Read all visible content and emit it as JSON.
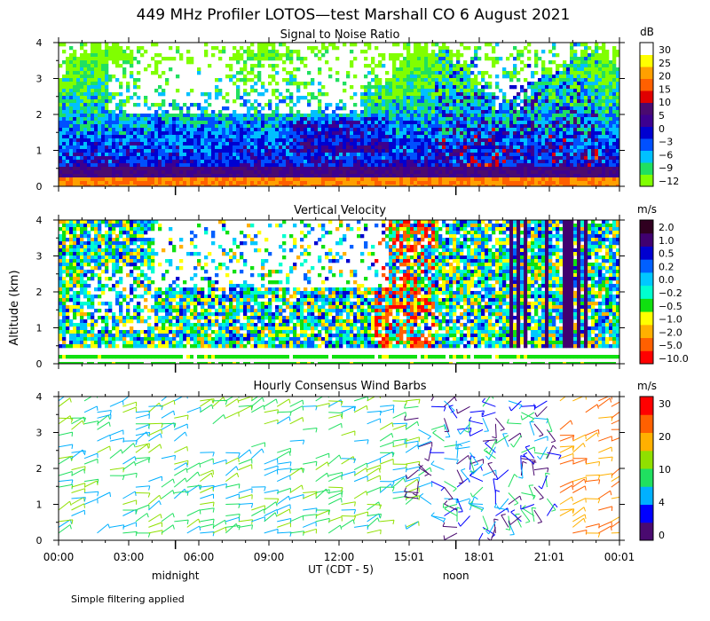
{
  "title": "449 MHz Profiler LOTOS—test Marshall CO  6 August 2021",
  "y_axis_label": "Altitude (km)",
  "x_axis_label": "UT  (CDT - 5)",
  "x_ticks": [
    "00:00",
    "03:00",
    "06:00",
    "09:00",
    "12:00",
    "15:01",
    "18:01",
    "21:01",
    "00:01"
  ],
  "local_markers": [
    {
      "label": "midnight",
      "hour": 5
    },
    {
      "label": "noon",
      "hour": 17
    }
  ],
  "footnote": "Simple filtering applied",
  "colors": {
    "snr": [
      "#80ff00",
      "#20e060",
      "#00c0ff",
      "#0050ff",
      "#0000d0",
      "#3c0090",
      "#4a0a70",
      "#e00000",
      "#ff6000",
      "#ffa000",
      "#ffff00",
      "#ffffff"
    ],
    "vv": [
      "#300020",
      "#400070",
      "#0000d0",
      "#0060ff",
      "#00c8ff",
      "#00ffd0",
      "#10e010",
      "#ffff00",
      "#ffb000",
      "#ff6000",
      "#ff0000"
    ],
    "wind": [
      "#4a0a70",
      "#0000ff",
      "#00b0ff",
      "#20e060",
      "#90e000",
      "#ffb000",
      "#ff6000",
      "#ff0000"
    ]
  },
  "chart_data": [
    {
      "type": "heatmap",
      "title": "Signal to Noise Ratio",
      "x_range_hours": [
        0,
        24
      ],
      "ylim": [
        0,
        4
      ],
      "yticks": [
        0,
        1,
        2,
        3,
        4
      ],
      "colorbar_unit": "dB",
      "colorbar_labels": [
        "30",
        "25",
        "20",
        "15",
        "10",
        "5",
        "0",
        "−3",
        "−6",
        "−9",
        "−12"
      ]
    },
    {
      "type": "heatmap",
      "title": "Vertical Velocity",
      "x_range_hours": [
        0,
        24
      ],
      "ylim": [
        0,
        4
      ],
      "yticks": [
        0,
        1,
        2,
        3,
        4
      ],
      "colorbar_unit": "m/s",
      "colorbar_labels": [
        "2.0",
        "1.0",
        "0.5",
        "0.2",
        "0.0",
        "−0.2",
        "−0.5",
        "−1.0",
        "−2.0",
        "−5.0",
        "−10.0"
      ]
    },
    {
      "type": "scatter",
      "title": "Hourly Consensus Wind Barbs",
      "x_range_hours": [
        0,
        24
      ],
      "ylim": [
        0,
        4
      ],
      "yticks": [
        0,
        1,
        2,
        3,
        4
      ],
      "colorbar_unit": "m/s",
      "colorbar_labels": [
        "30",
        "20",
        "10",
        "4",
        "0"
      ]
    }
  ]
}
